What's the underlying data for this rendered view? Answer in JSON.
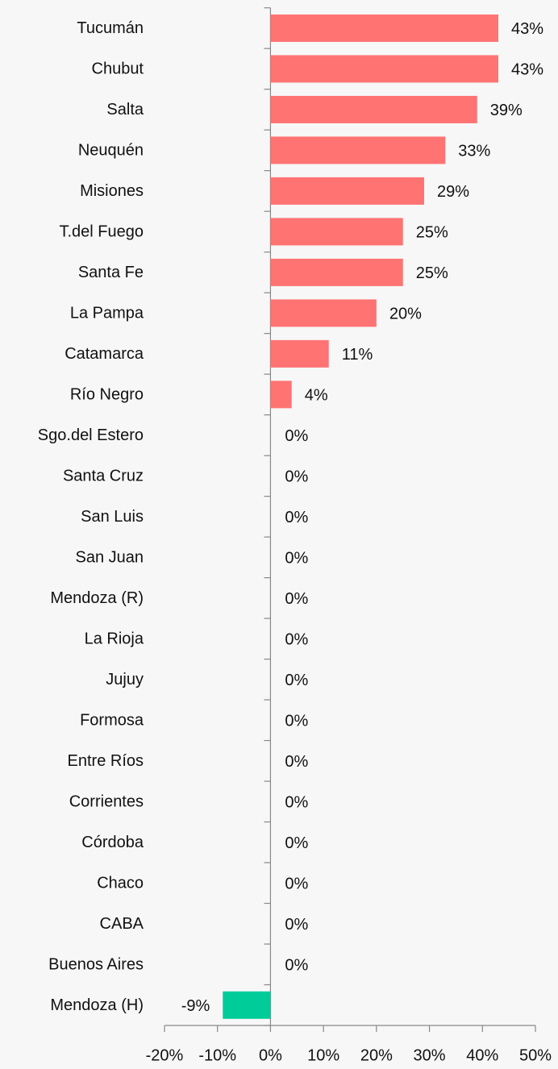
{
  "chart_data": {
    "type": "barh",
    "categories": [
      "Tucumán",
      "Chubut",
      "Salta",
      "Neuquén",
      "Misiones",
      "T.del Fuego",
      "Santa Fe",
      "La Pampa",
      "Catamarca",
      "Río Negro",
      "Sgo.del Estero",
      "Santa Cruz",
      "San Luis",
      "San Juan",
      "Mendoza (R)",
      "La Rioja",
      "Jujuy",
      "Formosa",
      "Entre Ríos",
      "Corrientes",
      "Córdoba",
      "Chaco",
      "CABA",
      "Buenos Aires",
      "Mendoza (H)"
    ],
    "values": [
      43,
      43,
      39,
      33,
      29,
      25,
      25,
      20,
      11,
      4,
      0,
      0,
      0,
      0,
      0,
      0,
      0,
      0,
      0,
      0,
      0,
      0,
      0,
      0,
      -9
    ],
    "value_labels": [
      "43%",
      "43%",
      "39%",
      "33%",
      "29%",
      "25%",
      "25%",
      "20%",
      "11%",
      "4%",
      "0%",
      "0%",
      "0%",
      "0%",
      "0%",
      "0%",
      "0%",
      "0%",
      "0%",
      "0%",
      "0%",
      "0%",
      "0%",
      "0%",
      "-9%"
    ],
    "color": "#ff7373",
    "negative_color": "#00cc99",
    "xlim": [
      -20,
      50
    ],
    "xticks": [
      {
        "value": -20,
        "label": "-20%"
      },
      {
        "value": -10,
        "label": "-10%"
      },
      {
        "value": 0,
        "label": "0%"
      },
      {
        "value": 10,
        "label": "10%"
      },
      {
        "value": 20,
        "label": "20%"
      },
      {
        "value": 30,
        "label": "30%"
      },
      {
        "value": 40,
        "label": "40%"
      },
      {
        "value": 50,
        "label": "50%"
      }
    ]
  }
}
